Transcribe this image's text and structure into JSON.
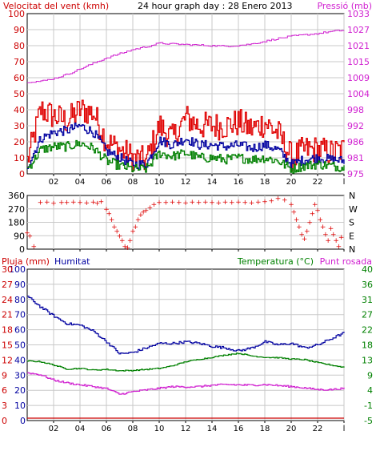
{
  "colors": {
    "wind_avg": "#cc0000",
    "wind_gust": "#e00000",
    "wind_mean": "#0000a0",
    "wind_min": "#008000",
    "pressure": "#d020d0",
    "direction": "#dd0000",
    "humidity": "#0000a0",
    "temperature": "#008000",
    "dewpoint": "#d020d0",
    "rain": "#cc0000",
    "grid": "#c8c8c8"
  },
  "header": {
    "wind_label": "Velocitat del vent (kmh)",
    "title": "24 hour graph day : 28 Enero 2013",
    "pressure_label": "Pressió (mb)"
  },
  "panel3_header": {
    "rain_label": "Pluja (mm)",
    "humidity_label": "Humitat",
    "temperature_label": "Temperatura (°C)",
    "dewpoint_label": "Punt rosada"
  },
  "chart_data": [
    {
      "type": "line",
      "title": "24 hour graph day : 28 Enero 2013",
      "ylabel": "Velocitat del vent (kmh)",
      "y2label": "Pressió (mb)",
      "x_ticks": [
        "02",
        "04",
        "06",
        "08",
        "10",
        "12",
        "14",
        "16",
        "18",
        "20",
        "22",
        "l"
      ],
      "y_ticks": [
        "0",
        "10",
        "20",
        "30",
        "40",
        "50",
        "60",
        "70",
        "80",
        "90",
        "100"
      ],
      "y2_ticks": [
        "975",
        "981",
        "986",
        "992",
        "998",
        "1004",
        "1009",
        "1015",
        "1021",
        "1027",
        "1033"
      ],
      "ylim": [
        0,
        100
      ],
      "y2lim": [
        975,
        1033
      ],
      "grid": true,
      "hours": [
        0,
        1,
        2,
        3,
        4,
        5,
        6,
        7,
        8,
        9,
        10,
        11,
        12,
        13,
        14,
        15,
        16,
        17,
        18,
        19,
        20,
        21,
        22,
        23,
        24
      ],
      "series": [
        {
          "name": "gust",
          "values": [
            8,
            40,
            36,
            33,
            40,
            38,
            20,
            15,
            10,
            8,
            30,
            22,
            35,
            30,
            30,
            30,
            32,
            28,
            32,
            25,
            10,
            15,
            15,
            13,
            15
          ]
        },
        {
          "name": "mean",
          "values": [
            5,
            22,
            26,
            27,
            30,
            26,
            14,
            10,
            6,
            6,
            21,
            18,
            22,
            18,
            18,
            17,
            18,
            16,
            18,
            15,
            6,
            9,
            10,
            9,
            8
          ]
        },
        {
          "name": "min",
          "values": [
            3,
            15,
            17,
            17,
            19,
            16,
            8,
            5,
            3,
            3,
            13,
            11,
            13,
            10,
            10,
            9,
            10,
            9,
            10,
            8,
            3,
            5,
            6,
            5,
            4
          ]
        },
        {
          "name": "pressure",
          "values": [
            1008.3,
            1008.5,
            1009.5,
            1011.0,
            1013.0,
            1015.0,
            1017.0,
            1018.5,
            1020.0,
            1021.0,
            1022.3,
            1022.0,
            1021.8,
            1021.6,
            1021.4,
            1021.2,
            1021.5,
            1022.0,
            1023.0,
            1024.0,
            1024.8,
            1025.3,
            1025.8,
            1026.5,
            1027.0
          ]
        }
      ]
    },
    {
      "type": "scatter",
      "title": "",
      "ylabel": "",
      "x_ticks": [
        "02",
        "04",
        "06",
        "08",
        "10",
        "12",
        "14",
        "16",
        "18",
        "20",
        "22",
        "l"
      ],
      "y_ticks": [
        "0",
        "90",
        "180",
        "270",
        "360"
      ],
      "y2_ticks": [
        "N",
        "E",
        "S",
        "W",
        "N"
      ],
      "ylim": [
        0,
        360
      ],
      "grid": true,
      "series": [
        {
          "name": "direction",
          "points": [
            [
              0.0,
              110
            ],
            [
              0.2,
              90
            ],
            [
              0.5,
              20
            ],
            [
              1.0,
              315
            ],
            [
              1.5,
              318
            ],
            [
              2.0,
              310
            ],
            [
              2.6,
              315
            ],
            [
              3.0,
              315
            ],
            [
              3.5,
              316
            ],
            [
              4.0,
              315
            ],
            [
              4.5,
              312
            ],
            [
              5.0,
              316
            ],
            [
              5.3,
              310
            ],
            [
              5.6,
              320
            ],
            [
              6.0,
              270
            ],
            [
              6.2,
              240
            ],
            [
              6.4,
              200
            ],
            [
              6.6,
              150
            ],
            [
              6.8,
              120
            ],
            [
              7.0,
              90
            ],
            [
              7.2,
              60
            ],
            [
              7.4,
              20
            ],
            [
              7.6,
              10
            ],
            [
              7.8,
              60
            ],
            [
              8.0,
              120
            ],
            [
              8.2,
              150
            ],
            [
              8.4,
              200
            ],
            [
              8.6,
              230
            ],
            [
              8.8,
              250
            ],
            [
              9.0,
              260
            ],
            [
              9.3,
              280
            ],
            [
              9.6,
              300
            ],
            [
              10.0,
              315
            ],
            [
              10.5,
              315
            ],
            [
              11.0,
              318
            ],
            [
              11.5,
              315
            ],
            [
              12.0,
              312
            ],
            [
              12.5,
              316
            ],
            [
              13.0,
              315
            ],
            [
              13.5,
              318
            ],
            [
              14.0,
              315
            ],
            [
              14.5,
              312
            ],
            [
              15.0,
              316
            ],
            [
              15.5,
              315
            ],
            [
              16.0,
              318
            ],
            [
              16.5,
              315
            ],
            [
              17.0,
              312
            ],
            [
              17.5,
              316
            ],
            [
              18.0,
              320
            ],
            [
              18.5,
              325
            ],
            [
              19.0,
              340
            ],
            [
              19.5,
              330
            ],
            [
              20.0,
              300
            ],
            [
              20.2,
              250
            ],
            [
              20.4,
              200
            ],
            [
              20.6,
              150
            ],
            [
              20.8,
              100
            ],
            [
              21.0,
              70
            ],
            [
              21.2,
              120
            ],
            [
              21.4,
              180
            ],
            [
              21.6,
              240
            ],
            [
              21.8,
              300
            ],
            [
              22.0,
              260
            ],
            [
              22.2,
              200
            ],
            [
              22.4,
              150
            ],
            [
              22.6,
              100
            ],
            [
              22.8,
              60
            ],
            [
              23.0,
              140
            ],
            [
              23.2,
              100
            ],
            [
              23.4,
              60
            ],
            [
              23.6,
              20
            ],
            [
              23.8,
              80
            ]
          ]
        }
      ]
    },
    {
      "type": "line",
      "title": "",
      "ylabel": "Pluja (mm)",
      "x_ticks": [
        "02",
        "04",
        "06",
        "08",
        "10",
        "12",
        "14",
        "16",
        "18",
        "20",
        "22",
        "l"
      ],
      "y_ticks": [
        "0",
        "10",
        "20",
        "30",
        "40",
        "50",
        "60",
        "70",
        "80",
        "90",
        "100"
      ],
      "y_ticks_left": [
        "0",
        "3",
        "6",
        "9",
        "12",
        "15",
        "18",
        "21",
        "24",
        "27",
        "30"
      ],
      "y2_ticks": [
        "-5",
        "-1",
        "4",
        "9",
        "13",
        "18",
        "22",
        "27",
        "31",
        "36",
        "40"
      ],
      "ylim": [
        0,
        100
      ],
      "y2lim": [
        -5,
        40
      ],
      "grid": true,
      "hours": [
        0,
        1,
        2,
        3,
        4,
        5,
        6,
        7,
        8,
        9,
        10,
        11,
        12,
        13,
        14,
        15,
        16,
        17,
        18,
        19,
        20,
        21,
        22,
        23,
        24
      ],
      "series": [
        {
          "name": "Humitat",
          "values": [
            82,
            75,
            69,
            64,
            63,
            59,
            52,
            44,
            45,
            48,
            51,
            51,
            52,
            51,
            49,
            48,
            46,
            48,
            52,
            50,
            51,
            48,
            50,
            54,
            58
          ]
        },
        {
          "name": "Temperatura (°C)",
          "values": [
            12.7,
            12.5,
            11.5,
            10.3,
            10.5,
            10.0,
            10.2,
            9.8,
            9.9,
            10.2,
            10.5,
            11.3,
            12.5,
            13.2,
            13.8,
            14.5,
            15.0,
            14.2,
            13.8,
            13.7,
            13.3,
            13.1,
            12.2,
            11.5,
            10.8
          ]
        },
        {
          "name": "Punt rosada",
          "values": [
            9.2,
            8.6,
            7.0,
            6.2,
            5.6,
            5.1,
            4.5,
            2.8,
            3.6,
            4.1,
            4.6,
            5.1,
            5.0,
            5.1,
            5.5,
            5.7,
            5.6,
            5.5,
            5.7,
            5.4,
            5.1,
            4.7,
            4.2,
            4.2,
            4.6
          ]
        },
        {
          "name": "Pluja (mm)",
          "values": [
            0,
            0,
            0,
            0,
            0,
            0,
            0,
            0,
            0,
            0,
            0,
            0,
            0,
            0,
            0,
            0,
            0,
            0,
            0,
            0,
            0,
            0,
            0,
            0,
            0
          ]
        }
      ]
    }
  ]
}
